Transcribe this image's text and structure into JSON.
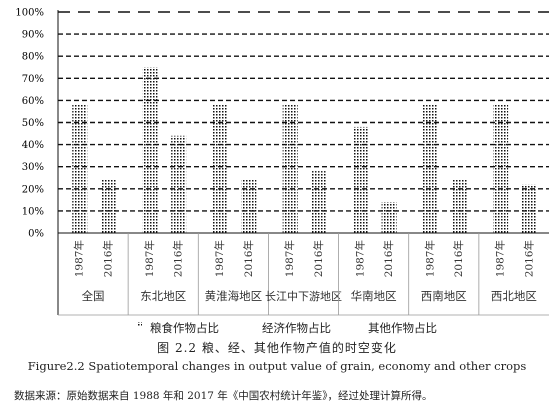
{
  "chart_data": {
    "type": "bar",
    "stacked": true,
    "orientation": "vertical",
    "y_ticks": [
      "0%",
      "10%",
      "20%",
      "30%",
      "40%",
      "50%",
      "60%",
      "70%",
      "80%",
      "90%",
      "100%"
    ],
    "ylim": [
      0,
      100
    ],
    "grid": true,
    "groups": [
      {
        "label": "全国",
        "years": [
          "1987年",
          "2016年"
        ]
      },
      {
        "label": "东北地区",
        "years": [
          "1987年",
          "2016年"
        ]
      },
      {
        "label": "黄淮海地区",
        "years": [
          "1987年",
          "2016年"
        ]
      },
      {
        "label": "长江中下游地区",
        "years": [
          "1987年",
          "2016年"
        ]
      },
      {
        "label": "华南地区",
        "years": [
          "1987年",
          "2016年"
        ]
      },
      {
        "label": "西南地区",
        "years": [
          "1987年",
          "2016年"
        ]
      },
      {
        "label": "西北地区",
        "years": [
          "1987年",
          "2016年"
        ]
      }
    ],
    "series": [
      {
        "name": "粮食作物占比",
        "values": [
          58,
          24,
          75,
          44,
          58,
          24,
          58,
          28,
          48,
          14,
          58,
          24,
          58,
          22
        ]
      },
      {
        "name": "经济作物占比",
        "values": [
          42,
          76,
          25,
          56,
          42,
          76,
          42,
          72,
          52,
          86,
          42,
          76,
          42,
          78
        ]
      },
      {
        "name": "其他作物占比",
        "values": [
          0,
          0,
          0,
          0,
          0,
          0,
          0,
          0,
          0,
          0,
          0,
          0,
          0,
          0
        ]
      }
    ],
    "legend_position": "bottom"
  },
  "caption_zh": "图 2.2 粮、经、其他作物产值的时空变化",
  "caption_en": "Figure2.2 Spatiotemporal changes in output value of grain, economy and other crops",
  "source_note": "数据来源：原始数据来自 1988 年和 2017 年《中国农村统计年鉴》，经过处理计算所得。"
}
